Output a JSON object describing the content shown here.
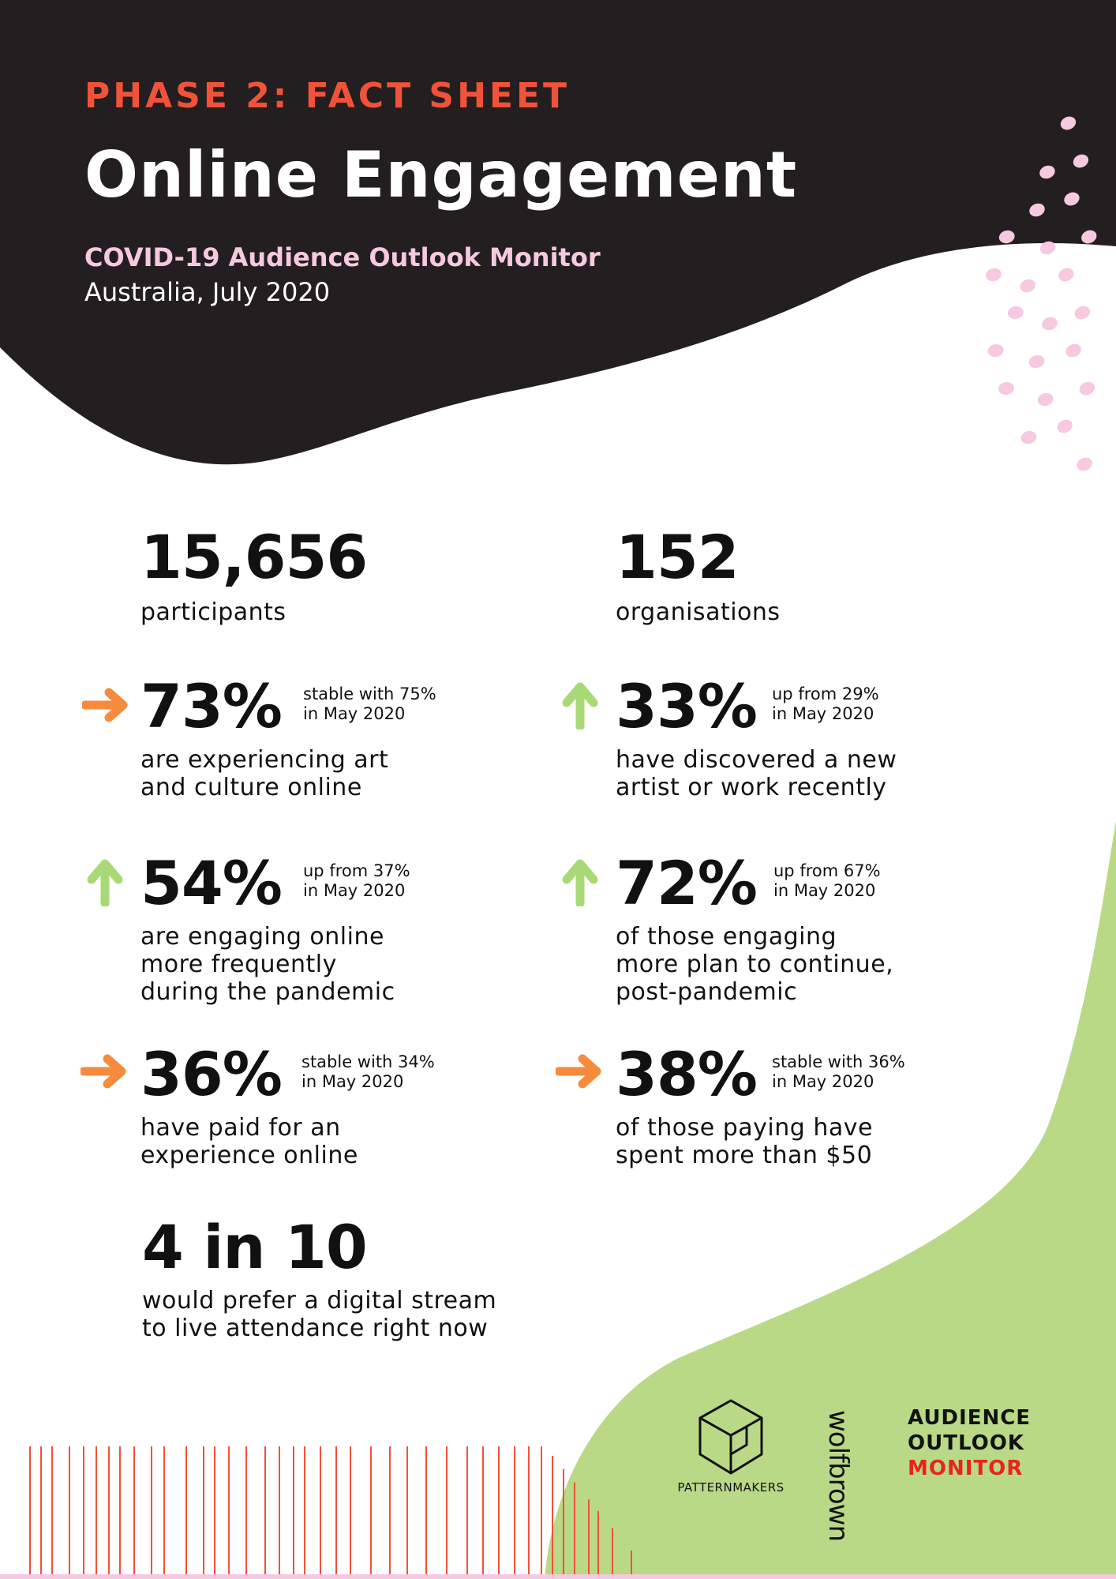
{
  "header": {
    "kicker": "PHASE 2: FACT SHEET",
    "title": "Online Engagement",
    "subtitle": "COVID-19 Audience Outlook Monitor",
    "date": "Australia, July 2020"
  },
  "stats": {
    "participants": {
      "value": "15,656",
      "label": "participants"
    },
    "organisations": {
      "value": "152",
      "label": "organisations"
    },
    "art_online": {
      "value": "73%",
      "trend": "stable",
      "note_line1": "stable with 75%",
      "note_line2": "in May 2020",
      "desc_line1": "are experiencing art",
      "desc_line2": "and culture online"
    },
    "discovered": {
      "value": "33%",
      "trend": "up",
      "note_line1": "up from 29%",
      "note_line2": "in May 2020",
      "desc_line1": "have discovered a new",
      "desc_line2": "artist or work recently"
    },
    "frequency": {
      "value": "54%",
      "trend": "up",
      "note_line1": "up from 37%",
      "note_line2": "in May 2020",
      "desc_line1": "are engaging online",
      "desc_line2": "more frequently",
      "desc_line3": "during the pandemic"
    },
    "continue": {
      "value": "72%",
      "trend": "up",
      "note_line1": "up from 67%",
      "note_line2": "in May 2020",
      "desc_line1": "of those engaging",
      "desc_line2": "more plan to continue,",
      "desc_line3": "post-pandemic"
    },
    "paid": {
      "value": "36%",
      "trend": "stable",
      "note_line1": "stable with 34%",
      "note_line2": "in May 2020",
      "desc_line1": "have paid for an",
      "desc_line2": "experience online"
    },
    "spent": {
      "value": "38%",
      "trend": "stable",
      "note_line1": "stable with 36%",
      "note_line2": "in May 2020",
      "desc_line1": "of those paying have",
      "desc_line2": "spent more than $50"
    },
    "stream": {
      "value": "4 in 10",
      "desc_line1": "would prefer a digital stream",
      "desc_line2": "to live attendance right now"
    }
  },
  "logos": {
    "patternmakers": "PATTERNMAKERS",
    "wolfbrown": "wolfbrown",
    "aom_line1": "AUDIENCE",
    "aom_line2": "OUTLOOK",
    "aom_line3": "MONITOR"
  },
  "colors": {
    "dark": "#231f20",
    "accent_red": "#f0523a",
    "pink": "#f6c9e0",
    "green": "#bad987",
    "arrow_stable": "#f68b3e",
    "arrow_up": "#a9d977"
  },
  "icons": {
    "stable": "arrow-right-icon",
    "up": "arrow-up-icon",
    "patternmakers_logo": "cube-icon"
  }
}
